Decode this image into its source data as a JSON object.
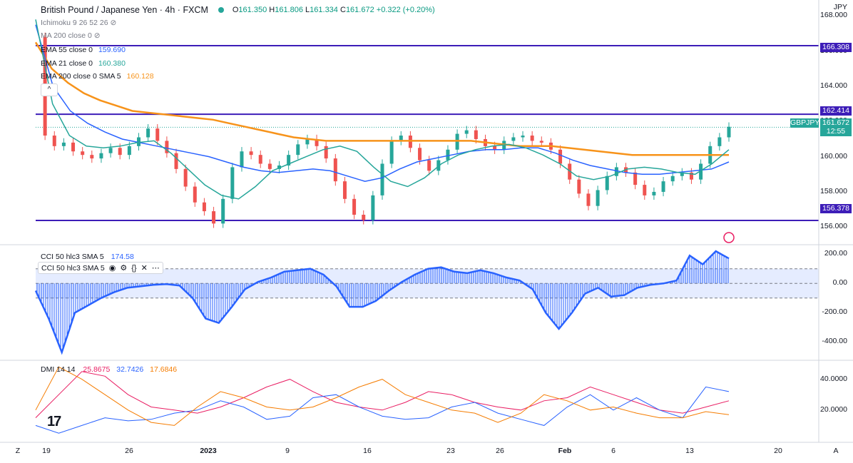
{
  "header": {
    "symbol": "British Pound / Japanese Yen · 4h · FXCM",
    "o_label": "O",
    "o": "161.350",
    "h_label": "H",
    "h": "161.806",
    "l_label": "L",
    "l": "161.334",
    "c_label": "C",
    "c": "161.672",
    "change": "+0.322 (+0.20%)"
  },
  "indicators": {
    "ichimoku": "Ichimoku 9 26 52 26",
    "ma200": "MA 200 close 0",
    "ema55_label": "EMA 55 close 0",
    "ema55_value": "159.690",
    "ema21_label": "EMA 21 close 0",
    "ema21_value": "160.380",
    "ema200_label": "EMA 200 close 0 SMA 5",
    "ema200_value": "160.128",
    "collapse": "^"
  },
  "cci": {
    "label": "CCI 50 hlc3 SMA 5",
    "value": "174.58",
    "label2": "CCI 50 hlc3 SMA 5"
  },
  "dmi": {
    "label": "DMI 14 14",
    "plus": "25.8675",
    "minus": "32.7426",
    "adx": "17.6846"
  },
  "axis": {
    "currency": "JPY",
    "price_ticks": [
      "168.000",
      "166.000",
      "164.000",
      "162.000",
      "160.000",
      "158.000",
      "156.000"
    ],
    "cci_ticks": [
      "200.00",
      "0.00",
      "-200.00",
      "-400.00"
    ],
    "dmi_ticks": [
      "40.0000",
      "20.0000"
    ],
    "x_ticks": [
      "19",
      "26",
      "2023",
      "9",
      "16",
      "23",
      "26",
      "Feb",
      "6",
      "13",
      "20"
    ],
    "z": "Z",
    "a": "A"
  },
  "levels": {
    "upper": "166.308",
    "middle": "162.414",
    "lower": "156.378",
    "last": "161.672",
    "countdown": "12:55",
    "symbol_tag": "GBPJPY"
  },
  "colors": {
    "level_line": "#3d1db8",
    "ema200": "#f7931a",
    "ema55": "#2962ff",
    "ema21": "#26a69a",
    "up": "#26a69a",
    "down": "#ef5350",
    "cci": "#2962ff",
    "dmi_plus": "#e91e63",
    "dmi_minus": "#2962ff",
    "adx": "#f57c00"
  },
  "chart_data": {
    "type": "line",
    "title": "British Pound / Japanese Yen · 4h · FXCM",
    "ylim": [
      155.2,
      168.5
    ],
    "levels": [
      166.308,
      162.414,
      156.378
    ],
    "close": [
      166.8,
      161.2,
      160.6,
      160.8,
      160.3,
      160.1,
      159.9,
      160.2,
      160.5,
      160.1,
      160.6,
      161.1,
      161.6,
      160.9,
      160.2,
      159.3,
      158.3,
      157.4,
      156.9,
      156.2,
      157.6,
      159.4,
      160.3,
      160.1,
      159.6,
      159.3,
      159.5,
      160.1,
      160.7,
      161.0,
      160.6,
      159.9,
      158.6,
      157.6,
      156.7,
      156.4,
      157.8,
      159.6,
      160.9,
      161.2,
      160.5,
      159.8,
      159.2,
      159.8,
      160.4,
      161.3,
      161.5,
      161.0,
      160.6,
      160.4,
      160.9,
      161.1,
      161.2,
      160.9,
      160.8,
      160.4,
      159.6,
      158.7,
      157.9,
      157.2,
      158.1,
      158.9,
      159.4,
      159.1,
      158.4,
      157.8,
      158.0,
      158.6,
      158.9,
      159.1,
      158.7,
      159.6,
      160.6,
      161.1,
      161.7
    ],
    "ema200": [
      166.5,
      165.0,
      164.2,
      163.6,
      163.2,
      162.9,
      162.6,
      162.5,
      162.4,
      162.3,
      162.2,
      162.1,
      161.9,
      161.7,
      161.5,
      161.3,
      161.1,
      161.0,
      160.9,
      160.9,
      160.9,
      160.9,
      160.9,
      160.9,
      160.9,
      160.9,
      160.9,
      160.9,
      160.8,
      160.7,
      160.6,
      160.6,
      160.6,
      160.5,
      160.4,
      160.3,
      160.2,
      160.1,
      160.1,
      160.1,
      160.1,
      160.1,
      160.1,
      160.1
    ],
    "ema55": [
      167.5,
      164.0,
      162.6,
      161.9,
      161.4,
      161.0,
      160.8,
      160.6,
      160.4,
      160.2,
      160.0,
      159.7,
      159.4,
      159.2,
      159.1,
      159.2,
      159.3,
      159.2,
      158.9,
      158.6,
      158.8,
      159.3,
      159.7,
      159.9,
      160.1,
      160.3,
      160.4,
      160.4,
      160.5,
      160.5,
      160.2,
      159.8,
      159.5,
      159.3,
      159.1,
      159.0,
      159.0,
      159.1,
      159.2,
      159.3,
      159.7
    ],
    "ema21": [
      167.8,
      163.0,
      161.2,
      160.6,
      160.5,
      160.6,
      160.8,
      160.9,
      160.2,
      159.3,
      158.4,
      157.8,
      157.6,
      158.3,
      159.2,
      159.6,
      160.0,
      160.4,
      160.6,
      160.3,
      159.4,
      158.6,
      158.3,
      158.8,
      159.6,
      160.1,
      160.4,
      160.6,
      160.7,
      160.5,
      160.1,
      159.6,
      158.9,
      158.7,
      158.9,
      159.3,
      159.4,
      159.3,
      159.1,
      159.0,
      159.6,
      160.4
    ],
    "cci": [
      -50,
      -240,
      -470,
      -200,
      -150,
      -100,
      -60,
      -30,
      -20,
      -10,
      -5,
      -15,
      -100,
      -240,
      -270,
      -160,
      -40,
      10,
      40,
      80,
      90,
      100,
      60,
      -20,
      -160,
      -160,
      -120,
      -50,
      10,
      60,
      100,
      110,
      80,
      70,
      90,
      70,
      40,
      20,
      -40,
      -200,
      -310,
      -200,
      -70,
      -30,
      -90,
      -80,
      -30,
      -10,
      0,
      20,
      190,
      130,
      220,
      170
    ],
    "cci_ylim": [
      -500,
      230
    ],
    "dmi_plus": [
      15,
      30,
      45,
      42,
      30,
      22,
      20,
      18,
      22,
      28,
      35,
      40,
      32,
      25,
      22,
      20,
      25,
      32,
      30,
      25,
      22,
      20,
      26,
      28,
      35,
      30,
      25,
      20,
      18,
      22,
      26
    ],
    "dmi_minus": [
      10,
      5,
      10,
      15,
      13,
      14,
      18,
      20,
      26,
      22,
      14,
      16,
      28,
      30,
      22,
      16,
      14,
      15,
      22,
      25,
      18,
      14,
      10,
      22,
      30,
      20,
      28,
      20,
      15,
      35,
      32
    ],
    "adx": [
      20,
      48,
      40,
      30,
      20,
      12,
      10,
      22,
      32,
      28,
      22,
      20,
      22,
      28,
      35,
      40,
      30,
      25,
      20,
      18,
      12,
      18,
      30,
      26,
      20,
      22,
      18,
      15,
      15,
      19,
      17
    ],
    "dmi_ylim": [
      0,
      50
    ]
  }
}
